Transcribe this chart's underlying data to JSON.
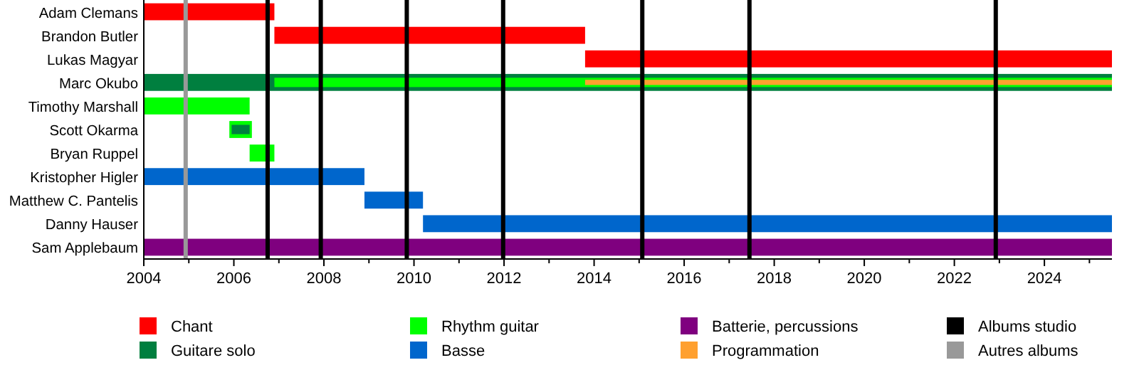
{
  "chart_data": {
    "type": "bar",
    "orientation": "horizontal",
    "categories": [
      "Adam Clemans",
      "Brandon Butler",
      "Lukas Magyar",
      "Marc Okubo",
      "Timothy Marshall",
      "Scott Okarma",
      "Bryan Ruppel",
      "Kristopher Higler",
      "Matthew C. Pantelis",
      "Danny Hauser",
      "Sam Applebaum"
    ],
    "series": [
      {
        "name": "Chant",
        "color": "#ff0000",
        "base": [
          2004,
          2006.9,
          2013.8,
          null,
          null,
          null,
          null,
          null,
          null,
          null,
          null
        ],
        "values": [
          2.9,
          6.9,
          11.7,
          null,
          null,
          null,
          null,
          null,
          null,
          null,
          null
        ]
      },
      {
        "name": "Guitare solo",
        "color": "#007f3f",
        "base": [
          null,
          null,
          null,
          2004,
          null,
          2005.95,
          null,
          null,
          null,
          null,
          null
        ],
        "values": [
          null,
          null,
          null,
          21.5,
          null,
          0.4,
          null,
          null,
          null,
          null,
          null
        ]
      },
      {
        "name": "Rhythm guitar",
        "color": "#00ff00",
        "base": [
          null,
          null,
          null,
          2006.9,
          2004,
          2005.9,
          2006.35,
          null,
          null,
          null,
          null
        ],
        "values": [
          null,
          null,
          null,
          18.6,
          2.35,
          0.5,
          0.55,
          null,
          null,
          null,
          null
        ]
      },
      {
        "name": "Basse",
        "color": "#0066cc",
        "base": [
          null,
          null,
          null,
          null,
          null,
          null,
          null,
          2004,
          2008.9,
          2010.2,
          null
        ],
        "values": [
          null,
          null,
          null,
          null,
          null,
          null,
          null,
          4.9,
          1.3,
          15.3,
          null
        ]
      },
      {
        "name": "Batterie, percussions",
        "color": "#7f007f",
        "base": [
          null,
          null,
          null,
          null,
          null,
          null,
          null,
          null,
          null,
          null,
          2004
        ],
        "values": [
          null,
          null,
          null,
          null,
          null,
          null,
          null,
          null,
          null,
          null,
          21.5
        ]
      },
      {
        "name": "Programmation",
        "color": "#ffa02f",
        "base": [
          null,
          null,
          null,
          2013.8,
          null,
          null,
          null,
          null,
          null,
          null,
          null
        ],
        "values": [
          null,
          null,
          null,
          11.7,
          null,
          null,
          null,
          null,
          null,
          null,
          null
        ]
      }
    ],
    "ref_lines": [
      {
        "axis": "x",
        "value": 2006.75,
        "label": "Albums studio",
        "color": "#000000"
      },
      {
        "axis": "x",
        "value": 2007.93,
        "color": "#000000"
      },
      {
        "axis": "x",
        "value": 2009.84,
        "color": "#000000"
      },
      {
        "axis": "x",
        "value": 2011.98,
        "color": "#000000"
      },
      {
        "axis": "x",
        "value": 2015.07,
        "color": "#000000"
      },
      {
        "axis": "x",
        "value": 2017.45,
        "color": "#000000"
      },
      {
        "axis": "x",
        "value": 2022.92,
        "color": "#000000"
      },
      {
        "axis": "x",
        "value": 2004.93,
        "label": "Autres albums",
        "color": "#999999"
      }
    ],
    "xlim": [
      2004,
      2025.5
    ],
    "xticks": [
      2004,
      {
        "value": 2005,
        "label": null
      },
      2006,
      {
        "value": 2007,
        "label": null
      },
      2008,
      {
        "value": 2009,
        "label": null
      },
      2010,
      {
        "value": 2011,
        "label": null
      },
      2012,
      {
        "value": 2013,
        "label": null
      },
      2014,
      {
        "value": 2015,
        "label": null
      },
      2016,
      {
        "value": 2017,
        "label": null
      },
      2018,
      {
        "value": 2019,
        "label": null
      },
      2020,
      {
        "value": 2021,
        "label": null
      },
      2022,
      {
        "value": 2023,
        "label": null
      },
      2024,
      {
        "value": 2025,
        "label": null
      }
    ],
    "grid": false,
    "legend": "bottom"
  }
}
